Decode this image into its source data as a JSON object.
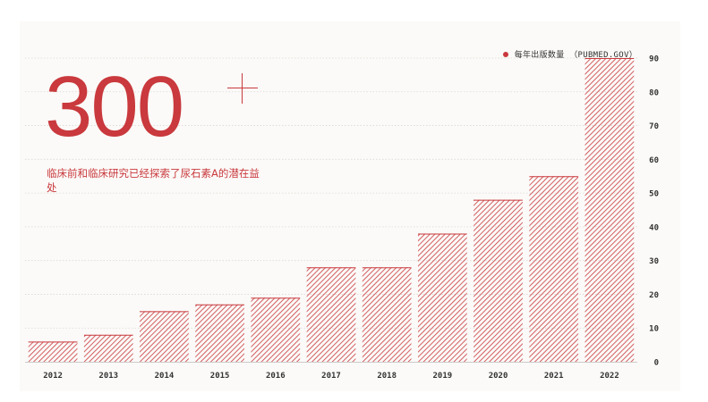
{
  "headline": {
    "number": "300",
    "subtitle": "临床前和临床研究已经探索了尿石素A的潜在益处"
  },
  "legend": {
    "label": "每年出版数量 （PUBMED.GOV）"
  },
  "colors": {
    "accent": "#c9393d",
    "grid": "#dcd8d4",
    "background": "#fbfaf8"
  },
  "chart_data": {
    "type": "bar",
    "categories": [
      "2012",
      "2013",
      "2014",
      "2015",
      "2016",
      "2017",
      "2018",
      "2019",
      "2020",
      "2021",
      "2022"
    ],
    "series": [
      {
        "name": "每年出版数量 （PUBMED.GOV）",
        "values": [
          6,
          8,
          15,
          17,
          19,
          28,
          28,
          38,
          48,
          55,
          90
        ]
      }
    ],
    "y_ticks": [
      0,
      10,
      20,
      30,
      40,
      50,
      60,
      70,
      80,
      90
    ],
    "ylim": [
      0,
      90
    ],
    "y_axis_side": "right",
    "grid": true,
    "legend_position": "top-right",
    "bar_fill": "diagonal-hatch"
  }
}
